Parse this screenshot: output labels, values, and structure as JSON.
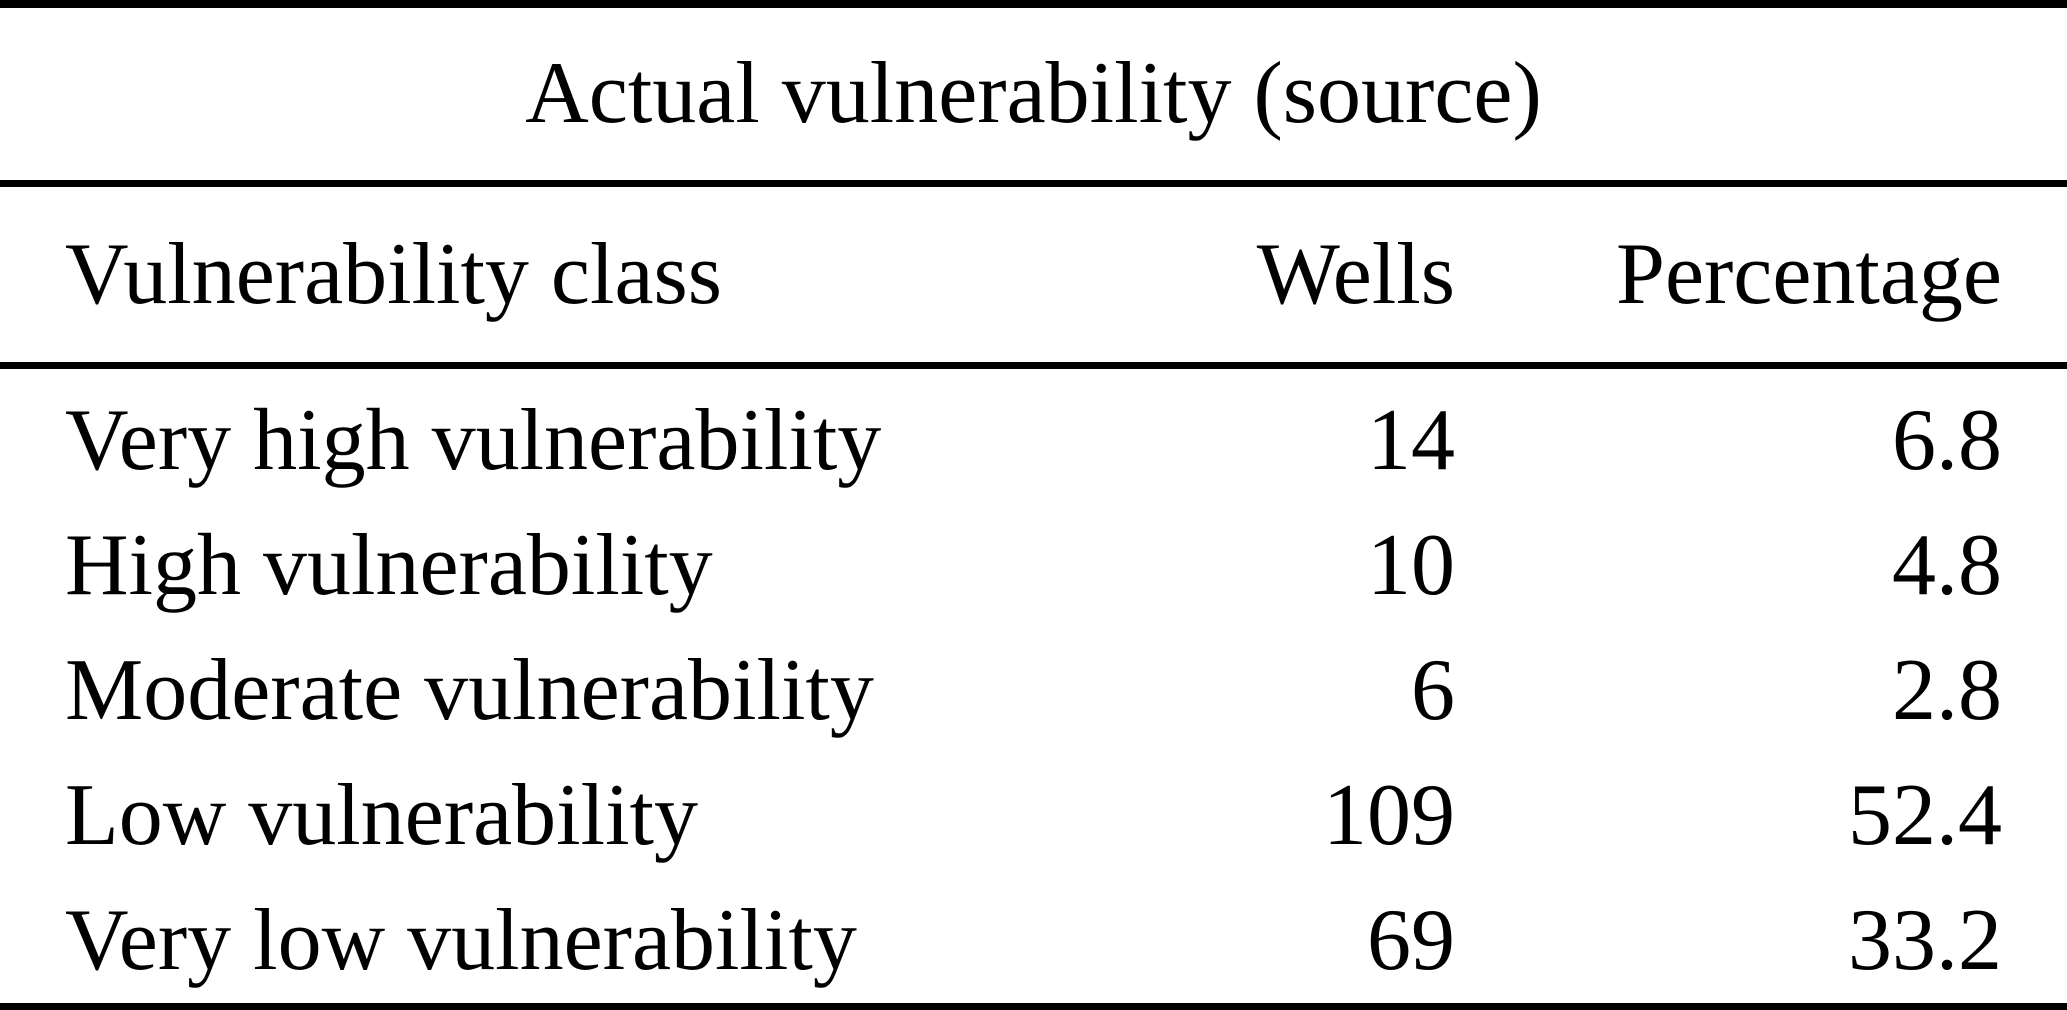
{
  "table": {
    "title": "Actual vulnerability (source)",
    "columns": [
      "Vulnerability class",
      "Wells",
      "Percentage"
    ],
    "rows": [
      {
        "class": "Very high vulnerability",
        "wells": "14",
        "percentage": "6.8"
      },
      {
        "class": "High vulnerability",
        "wells": "10",
        "percentage": "4.8"
      },
      {
        "class": "Moderate vulnerability",
        "wells": "6",
        "percentage": "2.8"
      },
      {
        "class": "Low vulnerability",
        "wells": "109",
        "percentage": "52.4"
      },
      {
        "class": "Very low vulnerability",
        "wells": "69",
        "percentage": "33.2"
      }
    ]
  },
  "colors": {
    "text": "#000000",
    "background": "#ffffff",
    "rule": "#000000"
  },
  "chart_data": {
    "type": "table",
    "title": "Actual vulnerability (source)",
    "categories": [
      "Very high vulnerability",
      "High vulnerability",
      "Moderate vulnerability",
      "Low vulnerability",
      "Very low vulnerability"
    ],
    "series": [
      {
        "name": "Wells",
        "values": [
          14,
          10,
          6,
          109,
          69
        ]
      },
      {
        "name": "Percentage",
        "values": [
          6.8,
          4.8,
          2.8,
          52.4,
          33.2
        ]
      }
    ]
  }
}
